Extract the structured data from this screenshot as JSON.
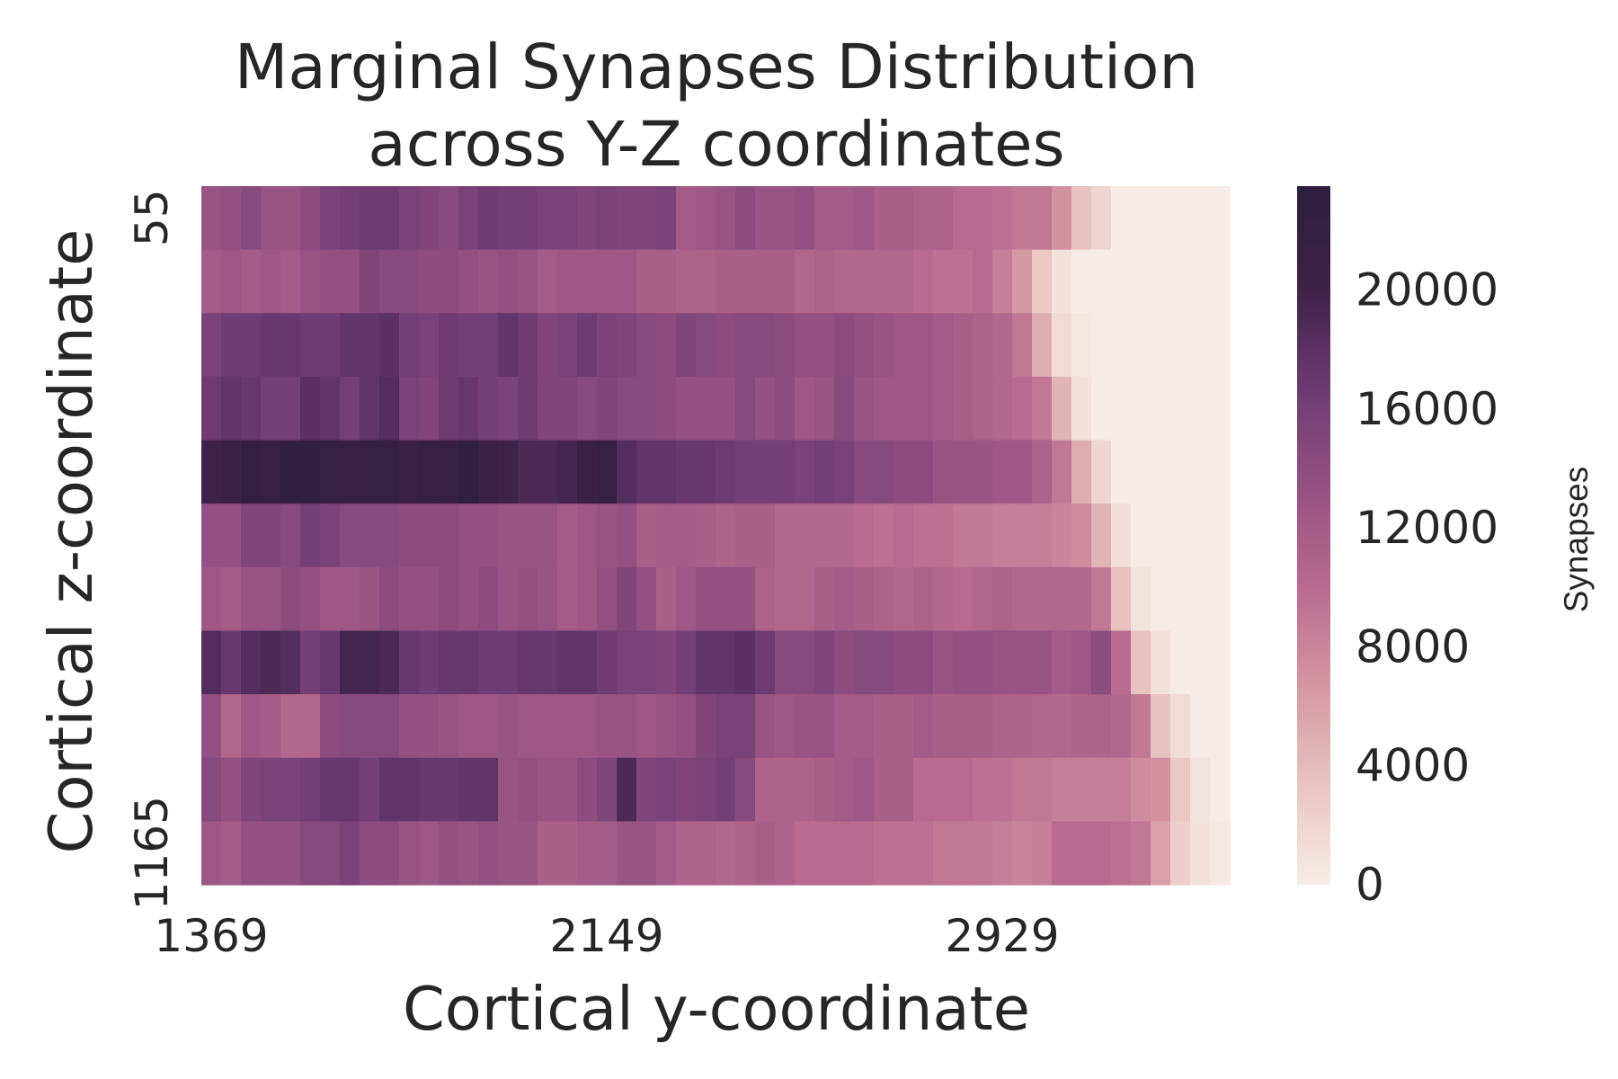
{
  "chart_data": {
    "type": "heatmap",
    "title_lines": [
      "Marginal Synapses Distribution",
      "across Y-Z coordinates"
    ],
    "xlabel": "Cortical y-coordinate",
    "ylabel": "Cortical z-coordinate",
    "x_tick_labels": [
      {
        "col": 0,
        "label": "1369"
      },
      {
        "col": 20,
        "label": "2149"
      },
      {
        "col": 40,
        "label": "2929"
      }
    ],
    "y_tick_labels": [
      {
        "row": 0,
        "label": "55"
      },
      {
        "row": 10,
        "label": "1165"
      }
    ],
    "colorbar": {
      "label": "Synapses",
      "min": 0,
      "max": 23500,
      "ticks": [
        0,
        4000,
        8000,
        12000,
        16000,
        20000
      ],
      "colors": [
        "#f7ede8",
        "#e8c4c2",
        "#d496a4",
        "#b76a8e",
        "#935181",
        "#6b3a70",
        "#3c2146",
        "#2d1e3e"
      ]
    },
    "n_cols": 52,
    "n_rows": 11,
    "values": [
      [
        13000,
        13500,
        14500,
        13000,
        13000,
        14000,
        15500,
        16000,
        16500,
        16500,
        15500,
        15000,
        14500,
        15500,
        16500,
        16000,
        16000,
        15500,
        15500,
        15000,
        15500,
        15000,
        15000,
        15500,
        12000,
        12500,
        13000,
        14000,
        13000,
        13000,
        13500,
        12000,
        12000,
        12500,
        11500,
        11500,
        11000,
        11000,
        10000,
        10000,
        9500,
        9000,
        9000,
        7000,
        3500,
        2000,
        200,
        200,
        200,
        200,
        200,
        200
      ],
      [
        12000,
        12500,
        12000,
        12500,
        12000,
        13000,
        13500,
        13500,
        15000,
        14500,
        14500,
        14000,
        14000,
        13500,
        13000,
        13500,
        13000,
        12000,
        12500,
        12500,
        12500,
        12500,
        11500,
        11500,
        11000,
        11000,
        11500,
        11500,
        11500,
        11500,
        10500,
        11000,
        10500,
        10500,
        10500,
        10500,
        10000,
        9500,
        9500,
        10000,
        8500,
        6500,
        3000,
        1000,
        200,
        200,
        200,
        200,
        200,
        200,
        200,
        200
      ],
      [
        15500,
        16500,
        16500,
        17000,
        17000,
        16500,
        16500,
        17500,
        17500,
        18000,
        16000,
        15500,
        16500,
        16000,
        16000,
        17500,
        16500,
        15000,
        15500,
        16500,
        15500,
        15000,
        14500,
        14000,
        15000,
        14500,
        14000,
        14500,
        14500,
        14000,
        13500,
        13500,
        14000,
        13500,
        13000,
        12500,
        12500,
        12000,
        11500,
        11000,
        10500,
        9000,
        5000,
        1500,
        500,
        200,
        200,
        200,
        200,
        200,
        200,
        200
      ],
      [
        16500,
        17500,
        17000,
        16000,
        16000,
        18000,
        17500,
        16000,
        17500,
        18500,
        15500,
        15000,
        16500,
        17000,
        16000,
        15500,
        16500,
        15000,
        15000,
        14500,
        15000,
        14500,
        14500,
        14000,
        13500,
        13500,
        13500,
        14500,
        13500,
        14000,
        12500,
        13000,
        14500,
        13000,
        12500,
        12500,
        12500,
        12000,
        11500,
        11000,
        10500,
        10000,
        9000,
        4500,
        1000,
        200,
        200,
        200,
        200,
        200,
        200,
        200
      ],
      [
        20000,
        20500,
        22000,
        21000,
        22500,
        22500,
        21500,
        21000,
        21500,
        21500,
        20500,
        21000,
        21500,
        22500,
        20500,
        20000,
        19000,
        19000,
        19500,
        20500,
        21500,
        18500,
        17500,
        17500,
        17000,
        17000,
        16500,
        16000,
        16000,
        16000,
        15500,
        16000,
        15500,
        14500,
        14500,
        14000,
        14000,
        13000,
        13000,
        13000,
        12500,
        12500,
        11000,
        9000,
        5000,
        2000,
        200,
        200,
        200,
        200,
        200,
        200
      ],
      [
        13500,
        13500,
        15000,
        15000,
        14500,
        16000,
        15500,
        14500,
        14500,
        14500,
        14000,
        14000,
        14000,
        13500,
        13500,
        13000,
        13000,
        13000,
        12000,
        12500,
        13000,
        13500,
        11500,
        12000,
        12000,
        11500,
        11000,
        11500,
        11500,
        10500,
        10500,
        10500,
        10500,
        10000,
        9500,
        10000,
        9500,
        9500,
        9000,
        9000,
        8500,
        8500,
        8500,
        8000,
        7500,
        4500,
        1200,
        200,
        200,
        200,
        200,
        200
      ],
      [
        12500,
        12000,
        13000,
        13000,
        14000,
        13500,
        12500,
        12500,
        13000,
        14000,
        13500,
        13500,
        14000,
        13500,
        14000,
        13000,
        13500,
        13000,
        12000,
        12500,
        13500,
        15000,
        13500,
        11500,
        12500,
        13500,
        13500,
        13500,
        11000,
        10500,
        10500,
        11500,
        12000,
        11500,
        11000,
        10500,
        11000,
        10500,
        10000,
        10500,
        11000,
        10500,
        10500,
        10500,
        10500,
        9000,
        3500,
        800,
        200,
        200,
        200,
        200
      ],
      [
        18500,
        17000,
        18500,
        19000,
        18500,
        16000,
        17000,
        19500,
        19500,
        19000,
        17000,
        16500,
        17000,
        17000,
        16500,
        16500,
        17000,
        17000,
        17500,
        17500,
        16500,
        15500,
        15500,
        15000,
        16000,
        17500,
        17500,
        18000,
        16500,
        14500,
        14500,
        15000,
        14000,
        14500,
        14500,
        14000,
        14000,
        13000,
        13500,
        13500,
        13000,
        13000,
        13000,
        12000,
        12500,
        14000,
        10000,
        3500,
        1000,
        200,
        200,
        200
      ],
      [
        13500,
        10500,
        12500,
        12000,
        10500,
        10500,
        14000,
        14500,
        14500,
        14500,
        13500,
        13500,
        13000,
        12500,
        12500,
        13000,
        12500,
        12500,
        12500,
        12500,
        13000,
        13000,
        12500,
        13000,
        13500,
        15000,
        15500,
        15500,
        13000,
        12500,
        13000,
        13000,
        12000,
        12000,
        11500,
        11500,
        12000,
        11500,
        11500,
        11500,
        11000,
        11000,
        10500,
        10500,
        11000,
        11000,
        10500,
        9000,
        3500,
        1500,
        200,
        200
      ],
      [
        14500,
        13500,
        15000,
        15500,
        15500,
        16000,
        17000,
        17000,
        16000,
        17500,
        17500,
        17000,
        17000,
        17500,
        17500,
        13000,
        13500,
        13000,
        13000,
        14000,
        15000,
        19000,
        15000,
        15500,
        15000,
        15500,
        16000,
        14500,
        11000,
        11000,
        11000,
        11500,
        12000,
        12500,
        11500,
        11500,
        10000,
        10000,
        10000,
        9500,
        9500,
        9000,
        9000,
        8500,
        8500,
        8500,
        8500,
        7500,
        7000,
        3000,
        800,
        200
      ],
      [
        12500,
        12000,
        13500,
        13500,
        13500,
        14500,
        14500,
        15500,
        14000,
        14000,
        13000,
        12500,
        13500,
        13000,
        13500,
        13000,
        13000,
        11500,
        11500,
        12000,
        12000,
        13000,
        13000,
        12000,
        11000,
        11000,
        10500,
        11000,
        11500,
        11000,
        10000,
        10000,
        10000,
        10000,
        9500,
        9500,
        9500,
        9000,
        9000,
        9000,
        8500,
        8000,
        8500,
        10000,
        10000,
        10000,
        9500,
        9000,
        6000,
        2500,
        1000,
        500
      ]
    ]
  }
}
